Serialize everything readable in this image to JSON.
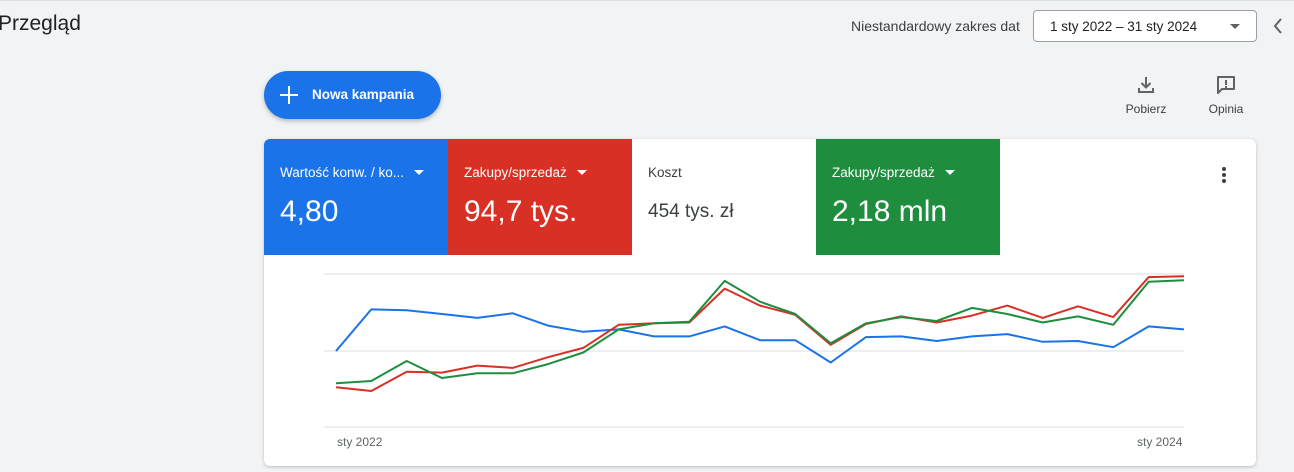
{
  "page": {
    "title": "Przegląd"
  },
  "date_range": {
    "label": "Niestandardowy zakres dat",
    "value": "1 sty 2022 – 31 sty 2024"
  },
  "actions": {
    "new_campaign": "Nowa kampania",
    "download": "Pobierz",
    "feedback": "Opinia"
  },
  "scorecards": [
    {
      "label": "Wartość konw. / ko...",
      "value": "4,80",
      "color": "#1a73e8",
      "has_dropdown": true
    },
    {
      "label": "Zakupy/sprzedaż",
      "value": "94,7 tys.",
      "color": "#d93025",
      "has_dropdown": true
    },
    {
      "label": "Koszt",
      "value": "454 tys. zł",
      "color": "#ffffff",
      "has_dropdown": false
    },
    {
      "label": "Zakupy/sprzedaż",
      "value": "2,18 mln",
      "color": "#1e8e3e",
      "has_dropdown": true
    }
  ],
  "chart_data": {
    "type": "line",
    "x_start_label": "sty 2022",
    "x_end_label": "sty 2024",
    "grid": true,
    "series": [
      {
        "color": "#1a73e8",
        "values": [
          0.0,
          0.54,
          0.53,
          0.48,
          0.43,
          0.49,
          0.33,
          0.25,
          0.28,
          0.19,
          0.19,
          0.32,
          0.14,
          0.14,
          -0.15,
          0.18,
          0.19,
          0.13,
          0.19,
          0.22,
          0.12,
          0.13,
          0.05,
          0.32,
          0.28
        ]
      },
      {
        "color": "#d93025",
        "values": [
          -0.47,
          -0.52,
          -0.27,
          -0.28,
          -0.19,
          -0.22,
          -0.08,
          0.04,
          0.34,
          0.36,
          0.37,
          0.81,
          0.59,
          0.47,
          0.08,
          0.35,
          0.45,
          0.37,
          0.46,
          0.59,
          0.43,
          0.58,
          0.44,
          0.96,
          0.97
        ]
      },
      {
        "color": "#1e8e3e",
        "values": [
          -0.42,
          -0.39,
          -0.13,
          -0.35,
          -0.29,
          -0.29,
          -0.17,
          -0.02,
          0.28,
          0.36,
          0.38,
          0.91,
          0.64,
          0.48,
          0.1,
          0.36,
          0.44,
          0.39,
          0.56,
          0.48,
          0.37,
          0.45,
          0.34,
          0.9,
          0.92
        ]
      }
    ]
  }
}
